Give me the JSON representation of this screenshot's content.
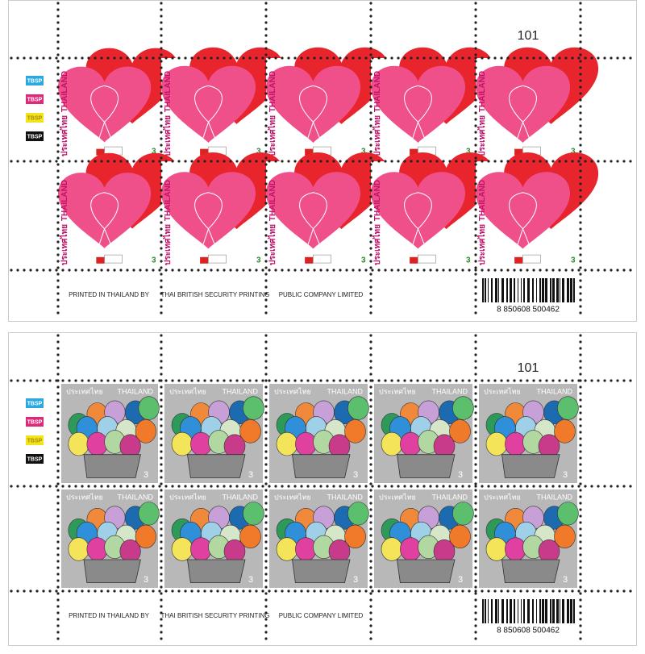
{
  "sheets": [
    {
      "design": "hearts",
      "sheet_number": "101",
      "stamp": {
        "country_thai": "ประเทศไทย",
        "country_en": "THAILAND",
        "value": "3"
      },
      "color_mark_label": "TBSP",
      "footer": [
        "PRINTED IN THAILAND BY",
        "THAI BRITISH SECURITY PRINTING",
        "PUBLIC COMPANY LIMITED"
      ],
      "barcode_number": "8 850608 500462"
    },
    {
      "design": "balloons",
      "sheet_number": "101",
      "stamp": {
        "country_thai": "ประเทศไทย",
        "country_en": "THAILAND",
        "value": "3"
      },
      "color_mark_label": "TBSP",
      "footer": [
        "PRINTED IN THAILAND BY",
        "THAI BRITISH SECURITY PRINTING",
        "PUBLIC COMPANY LIMITED"
      ],
      "barcode_number": "8 850608 500462"
    }
  ]
}
